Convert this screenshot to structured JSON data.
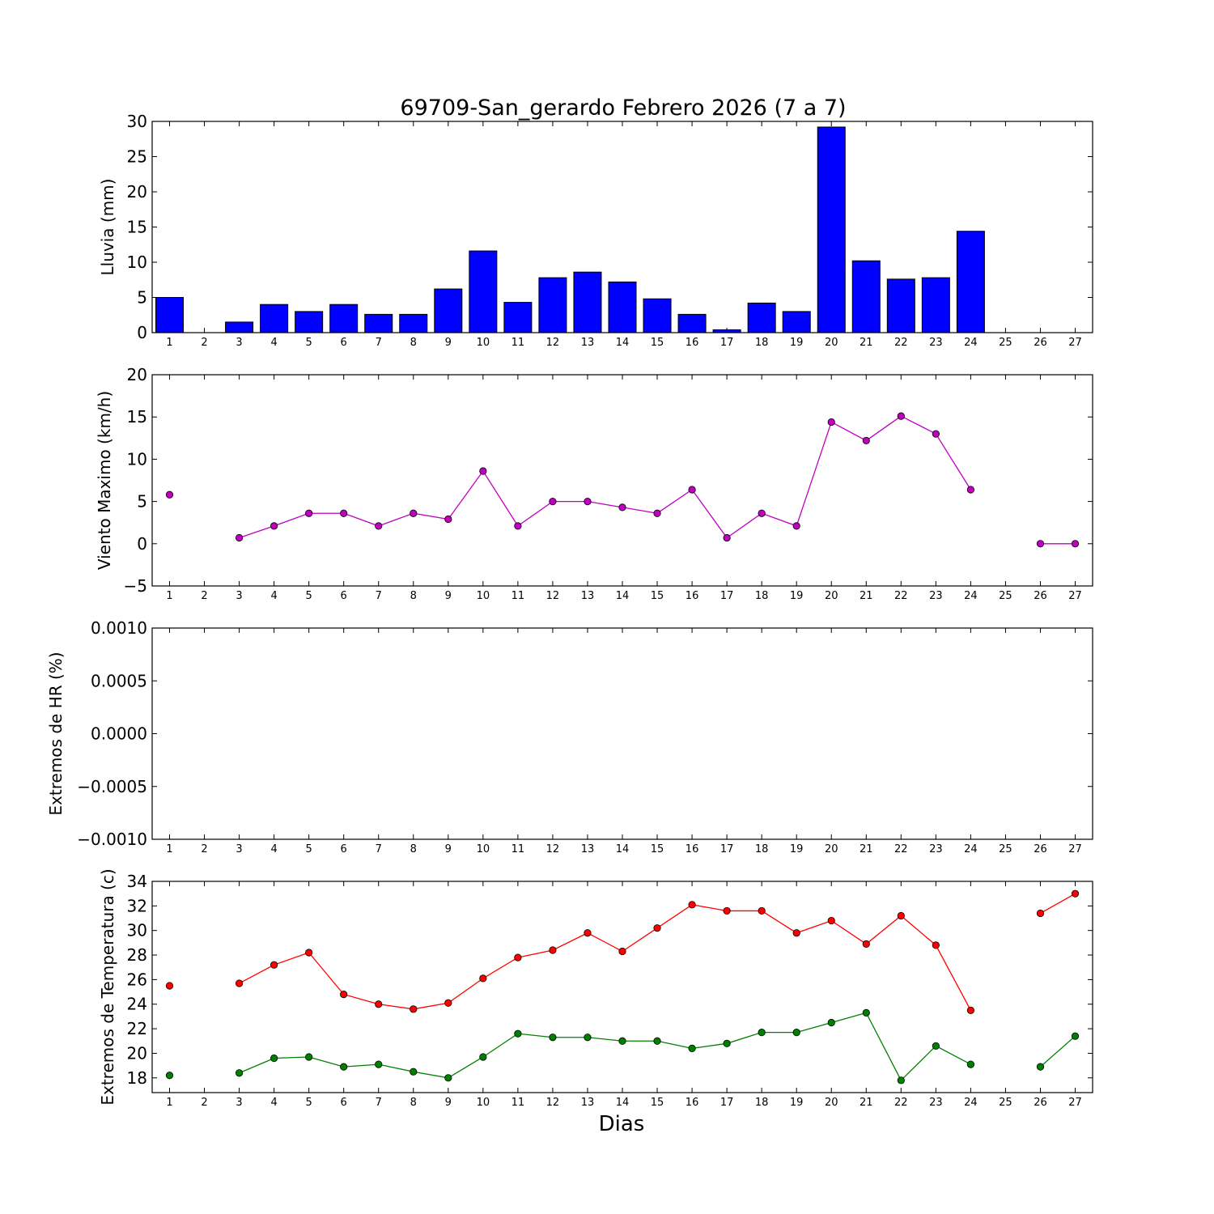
{
  "title": "69709-San_gerardo Febrero 2026  (7 a 7)",
  "xlabel": "Dias",
  "colors": {
    "rain": "#0000ff",
    "wind": "#bf00bf",
    "tmax": "#ff0000",
    "tmin": "#008000",
    "axes": "#000000"
  },
  "chart_data": [
    {
      "type": "bar",
      "ylabel": "Lluvia (mm)",
      "ylim": [
        0,
        30
      ],
      "yticks": [
        0,
        5,
        10,
        15,
        20,
        25,
        30
      ],
      "ytick_labels": [
        "0",
        "5",
        "10",
        "15",
        "20",
        "25",
        "30"
      ],
      "categories": [
        "1",
        "2",
        "3",
        "4",
        "5",
        "6",
        "7",
        "8",
        "9",
        "10",
        "11",
        "12",
        "13",
        "14",
        "15",
        "16",
        "17",
        "18",
        "19",
        "20",
        "21",
        "22",
        "23",
        "24",
        "25",
        "26",
        "27"
      ],
      "series": [
        {
          "color": "#0000ff",
          "values": [
            5.0,
            null,
            1.5,
            4.0,
            3.0,
            4.0,
            2.6,
            2.6,
            6.2,
            11.6,
            4.3,
            7.8,
            8.6,
            7.2,
            4.8,
            2.6,
            0.4,
            4.2,
            3.0,
            29.2,
            10.2,
            7.6,
            7.8,
            14.4,
            null,
            0.0,
            0.0
          ]
        }
      ],
      "grid": false
    },
    {
      "type": "line",
      "ylabel": "Viento Maximo (km/h)",
      "ylim": [
        -5,
        20
      ],
      "yticks": [
        -5,
        0,
        5,
        10,
        15,
        20
      ],
      "ytick_labels": [
        "−5",
        "0",
        "5",
        "10",
        "15",
        "20"
      ],
      "categories": [
        "1",
        "2",
        "3",
        "4",
        "5",
        "6",
        "7",
        "8",
        "9",
        "10",
        "11",
        "12",
        "13",
        "14",
        "15",
        "16",
        "17",
        "18",
        "19",
        "20",
        "21",
        "22",
        "23",
        "24",
        "25",
        "26",
        "27"
      ],
      "series": [
        {
          "color": "#bf00bf",
          "values": [
            5.8,
            null,
            0.7,
            2.1,
            3.6,
            3.6,
            2.1,
            3.6,
            2.9,
            8.6,
            2.1,
            5.0,
            5.0,
            4.3,
            3.6,
            6.4,
            0.7,
            3.6,
            2.1,
            14.4,
            12.2,
            15.1,
            13.0,
            6.4,
            null,
            0.0,
            0.0
          ]
        }
      ],
      "grid": false
    },
    {
      "type": "line",
      "ylabel": "Extremos de HR (%)",
      "ylim": [
        -0.001,
        0.001
      ],
      "yticks": [
        -0.001,
        -0.0005,
        0,
        0.0005,
        0.001
      ],
      "ytick_labels": [
        "−0.0010",
        "−0.0005",
        "0.0000",
        "0.0005",
        "0.0010"
      ],
      "categories": [
        "1",
        "2",
        "3",
        "4",
        "5",
        "6",
        "7",
        "8",
        "9",
        "10",
        "11",
        "12",
        "13",
        "14",
        "15",
        "16",
        "17",
        "18",
        "19",
        "20",
        "21",
        "22",
        "23",
        "24",
        "25",
        "26",
        "27"
      ],
      "series": [],
      "grid": false
    },
    {
      "type": "line",
      "ylabel": "Extremos de Temperatura (c)",
      "ylim": [
        16.8,
        34
      ],
      "yticks": [
        18,
        20,
        22,
        24,
        26,
        28,
        30,
        32,
        34
      ],
      "ytick_labels": [
        "18",
        "20",
        "22",
        "24",
        "26",
        "28",
        "30",
        "32",
        "34"
      ],
      "categories": [
        "1",
        "2",
        "3",
        "4",
        "5",
        "6",
        "7",
        "8",
        "9",
        "10",
        "11",
        "12",
        "13",
        "14",
        "15",
        "16",
        "17",
        "18",
        "19",
        "20",
        "21",
        "22",
        "23",
        "24",
        "25",
        "26",
        "27"
      ],
      "series": [
        {
          "color": "#ff0000",
          "values": [
            25.5,
            null,
            25.7,
            27.2,
            28.2,
            24.8,
            24.0,
            23.6,
            24.1,
            26.1,
            27.8,
            28.4,
            29.8,
            28.3,
            30.2,
            32.1,
            31.6,
            31.6,
            29.8,
            30.8,
            28.9,
            31.2,
            28.8,
            23.5,
            null,
            31.4,
            33.0
          ]
        },
        {
          "color": "#008000",
          "values": [
            18.2,
            null,
            18.4,
            19.6,
            19.7,
            18.9,
            19.1,
            18.5,
            18.0,
            19.7,
            21.6,
            21.3,
            21.3,
            21.0,
            21.0,
            20.4,
            20.8,
            21.7,
            21.7,
            22.5,
            23.3,
            17.8,
            20.6,
            19.1,
            null,
            18.9,
            21.4
          ]
        }
      ],
      "grid": false
    }
  ]
}
